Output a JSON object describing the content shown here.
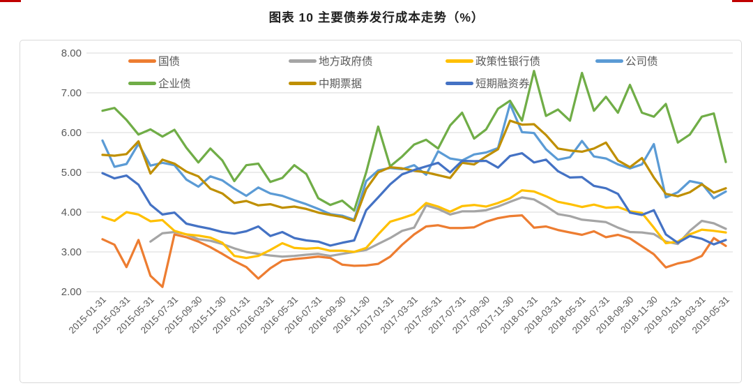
{
  "page": {
    "title": "图表 10 主要债券发行成本走势（%）"
  },
  "chart_data": {
    "type": "line",
    "title": "图表 10 主要债券发行成本走势（%）",
    "xlabel": "",
    "ylabel": "",
    "ylim": [
      2.0,
      8.0
    ],
    "grid": "horizontal",
    "legend_position": "top-inside, two rows",
    "y_tick_labels": [
      "8.00",
      "7.00",
      "6.00",
      "5.00",
      "4.00",
      "3.00",
      "2.00"
    ],
    "x_tick_labels": [
      "2015-01-31",
      "2015-03-31",
      "2015-05-31",
      "2015-07-31",
      "2015-09-30",
      "2015-11-30",
      "2016-01-31",
      "2016-03-31",
      "2016-05-31",
      "2016-07-31",
      "2016-09-30",
      "2016-11-30",
      "2017-01-31",
      "2017-03-31",
      "2017-05-31",
      "2017-07-31",
      "2017-09-30",
      "2017-11-30",
      "2018-01-31",
      "2018-03-31",
      "2018-05-31",
      "2018-07-31",
      "2018-09-30",
      "2018-11-30",
      "2019-01-31",
      "2019-03-31",
      "2019-05-31"
    ],
    "x_tick_every_n_months": 2,
    "n_points": 53,
    "series": [
      {
        "id": "treasury-bond",
        "name": "国债",
        "color": "#ED7D31",
        "values": [
          3.32,
          3.18,
          2.62,
          3.3,
          2.4,
          2.12,
          3.44,
          3.37,
          3.26,
          3.12,
          2.95,
          2.77,
          2.62,
          2.33,
          2.59,
          2.78,
          2.82,
          2.85,
          2.88,
          2.85,
          2.68,
          2.65,
          2.66,
          2.7,
          2.88,
          3.18,
          3.44,
          3.64,
          3.67,
          3.6,
          3.6,
          3.62,
          3.76,
          3.85,
          3.9,
          3.92,
          3.61,
          3.64,
          3.55,
          3.49,
          3.43,
          3.52,
          3.37,
          3.43,
          3.34,
          3.14,
          2.94,
          2.61,
          2.71,
          2.77,
          2.9,
          3.35,
          3.15
        ]
      },
      {
        "id": "local-government-bond",
        "name": "地方政府债",
        "color": "#A5A5A5",
        "values": [
          null,
          null,
          null,
          null,
          3.26,
          3.47,
          3.5,
          3.44,
          3.32,
          3.28,
          3.2,
          3.09,
          3.0,
          2.95,
          2.91,
          2.88,
          2.9,
          2.93,
          2.95,
          2.9,
          2.95,
          3.0,
          3.05,
          3.2,
          3.35,
          3.53,
          3.61,
          4.17,
          4.08,
          3.94,
          4.02,
          4.02,
          4.05,
          4.14,
          4.26,
          4.37,
          4.32,
          4.15,
          3.95,
          3.9,
          3.81,
          3.78,
          3.75,
          3.61,
          3.5,
          3.49,
          3.45,
          3.26,
          3.2,
          3.53,
          3.78,
          3.72,
          3.58
        ]
      },
      {
        "id": "policy-bank-bond",
        "name": "政策性银行债",
        "color": "#FFC000",
        "values": [
          3.88,
          3.78,
          4.0,
          3.94,
          3.77,
          3.8,
          3.53,
          3.44,
          3.41,
          3.36,
          3.23,
          2.9,
          2.85,
          2.9,
          3.05,
          3.22,
          3.1,
          3.08,
          3.1,
          3.03,
          3.03,
          3.0,
          3.1,
          3.44,
          3.76,
          3.85,
          3.95,
          4.23,
          4.14,
          4.01,
          4.15,
          4.18,
          4.14,
          4.23,
          4.35,
          4.55,
          4.52,
          4.4,
          4.26,
          4.2,
          4.13,
          4.19,
          4.11,
          4.13,
          4.02,
          3.98,
          3.61,
          3.22,
          3.26,
          3.44,
          3.56,
          3.53,
          3.49
        ]
      },
      {
        "id": "corporate-bond",
        "name": "公司债",
        "color": "#5B9BD5",
        "values": [
          5.8,
          5.14,
          5.21,
          5.72,
          5.17,
          5.24,
          5.18,
          4.82,
          4.64,
          4.9,
          4.8,
          4.59,
          4.41,
          4.62,
          4.47,
          4.41,
          4.3,
          4.2,
          4.08,
          3.95,
          3.91,
          3.81,
          4.78,
          5.05,
          5.11,
          5.08,
          5.18,
          4.94,
          5.53,
          5.35,
          5.3,
          5.45,
          5.5,
          5.61,
          6.72,
          6.01,
          5.99,
          5.58,
          5.32,
          5.38,
          5.79,
          5.4,
          5.35,
          5.2,
          5.1,
          5.2,
          5.71,
          4.37,
          4.5,
          4.78,
          4.72,
          4.35,
          4.52
        ]
      },
      {
        "id": "enterprise-bond",
        "name": "企业债",
        "color": "#70AD47",
        "values": [
          6.55,
          6.62,
          6.32,
          5.95,
          6.08,
          5.9,
          6.07,
          5.62,
          5.25,
          5.6,
          5.3,
          4.78,
          5.18,
          5.22,
          4.76,
          4.86,
          5.18,
          4.96,
          4.35,
          4.18,
          4.29,
          4.04,
          5.0,
          6.15,
          5.15,
          5.4,
          5.7,
          5.82,
          5.6,
          6.18,
          6.5,
          5.85,
          6.08,
          6.6,
          6.8,
          6.3,
          7.55,
          6.42,
          6.58,
          6.3,
          7.5,
          6.55,
          6.9,
          6.5,
          7.2,
          6.5,
          6.4,
          6.72,
          5.75,
          5.95,
          6.4,
          6.48,
          5.26
        ]
      },
      {
        "id": "medium-term-note",
        "name": "中期票据",
        "color": "#BF8F00",
        "values": [
          5.44,
          5.42,
          5.46,
          5.78,
          4.97,
          5.32,
          5.22,
          5.02,
          4.9,
          4.59,
          4.47,
          4.23,
          4.28,
          4.17,
          4.2,
          4.11,
          4.14,
          4.08,
          3.99,
          3.93,
          3.88,
          3.78,
          4.58,
          5.0,
          5.13,
          5.1,
          5.04,
          5.0,
          4.93,
          4.86,
          5.24,
          5.2,
          5.4,
          5.58,
          6.3,
          6.2,
          6.21,
          5.94,
          5.6,
          5.55,
          5.52,
          5.6,
          5.75,
          5.3,
          5.13,
          5.36,
          4.87,
          4.46,
          4.4,
          4.5,
          4.7,
          4.49,
          4.6
        ]
      },
      {
        "id": "short-term-cp",
        "name": "短期融资券",
        "color": "#4472C4",
        "values": [
          4.98,
          4.85,
          4.92,
          4.69,
          4.19,
          3.94,
          3.99,
          3.71,
          3.64,
          3.58,
          3.5,
          3.46,
          3.52,
          3.64,
          3.4,
          3.5,
          3.35,
          3.29,
          3.26,
          3.16,
          3.23,
          3.29,
          4.05,
          4.37,
          4.7,
          4.95,
          5.06,
          5.15,
          5.24,
          5.0,
          5.29,
          5.28,
          5.29,
          5.12,
          5.41,
          5.48,
          5.25,
          5.32,
          5.03,
          4.87,
          4.88,
          4.66,
          4.6,
          4.46,
          3.99,
          3.93,
          4.05,
          3.44,
          3.23,
          3.4,
          3.33,
          3.19,
          3.3
        ]
      }
    ],
    "style": {
      "accent_red": "#C00000",
      "grid_color": "#D9D9D9",
      "axis_text_color": "#595959",
      "title_color": "#1f1f1f",
      "line_width": 3.25
    }
  }
}
